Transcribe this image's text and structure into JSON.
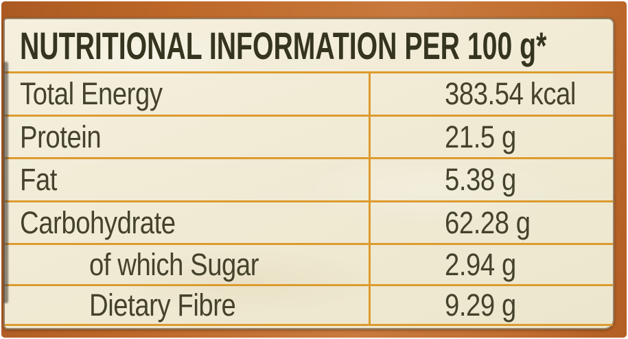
{
  "label_panel": {
    "title": "NUTRITIONAL INFORMATION PER 100 g*"
  },
  "table": {
    "rows": [
      {
        "label": "Total Energy",
        "value": "383.54 kcal",
        "indent": false
      },
      {
        "label": "Protein",
        "value": "21.5 g",
        "indent": false
      },
      {
        "label": "Fat",
        "value": "5.38 g",
        "indent": false
      },
      {
        "label": "Carbohydrate",
        "value": "62.28 g",
        "indent": false
      },
      {
        "label": "of which Sugar",
        "value": "2.94 g",
        "indent": true
      },
      {
        "label": "Dietary Fibre",
        "value": "9.29 g",
        "indent": true
      }
    ]
  },
  "colors": {
    "rule_orange": "#dd9a2e",
    "package_orange": "#bd6729",
    "label_cream": "#f1ebd5",
    "text_olive": "#45422c",
    "header_text": "#35341f"
  }
}
